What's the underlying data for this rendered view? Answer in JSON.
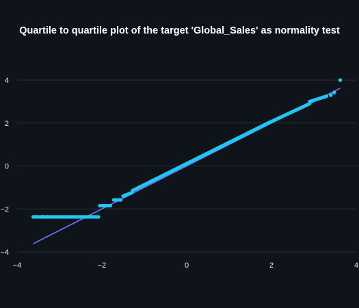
{
  "chart_data": {
    "type": "scatter",
    "title": "Quartile to quartile plot of the target 'Global_Sales' as normality test",
    "xlabel": "",
    "ylabel": "",
    "xlim": [
      -4,
      4
    ],
    "ylim": [
      -4,
      4.3
    ],
    "xticks": [
      -4,
      -2,
      0,
      2,
      4
    ],
    "yticks": [
      -4,
      -2,
      0,
      2,
      4
    ],
    "grid": true,
    "legend": "none",
    "series": [
      {
        "kind": "points",
        "color": "#22c6f0",
        "segments": [
          {
            "x": [
              -3.62,
              -2.08
            ],
            "y": [
              -2.37,
              -2.37
            ]
          },
          {
            "x": [
              -2.05,
              -1.8
            ],
            "y": [
              -1.85,
              -1.85
            ]
          },
          {
            "x": [
              -1.72,
              -1.55
            ],
            "y": [
              -1.58,
              -1.58
            ]
          },
          {
            "x": [
              -1.5,
              -1.3
            ],
            "y": [
              -1.4,
              -1.25
            ]
          },
          {
            "x": [
              -1.28,
              1.9
            ],
            "y": [
              -1.15,
              1.98
            ]
          },
          {
            "x": [
              1.9,
              2.9
            ],
            "y": [
              1.98,
              2.9
            ]
          },
          {
            "x": [
              2.9,
              3.3
            ],
            "y": [
              3.0,
              3.25
            ]
          }
        ],
        "isolated": [
          {
            "x": -3.55,
            "y": -2.37
          },
          {
            "x": -3.4,
            "y": -2.37
          },
          {
            "x": -3.28,
            "y": -2.37
          },
          {
            "x": 3.4,
            "y": 3.3
          },
          {
            "x": 3.48,
            "y": 3.42
          },
          {
            "x": 3.62,
            "y": 4.0
          }
        ]
      },
      {
        "kind": "line",
        "color": "#6a6ef2",
        "x": [
          -3.62,
          3.62
        ],
        "y": [
          -3.62,
          3.62
        ]
      }
    ]
  }
}
